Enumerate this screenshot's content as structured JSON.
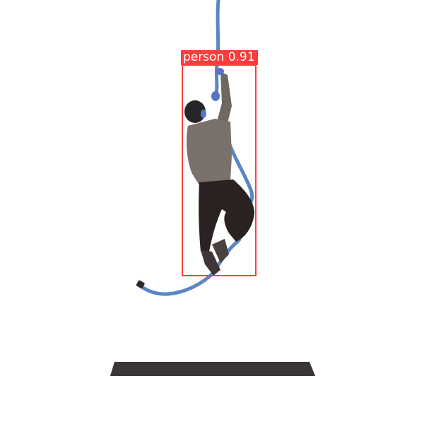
{
  "detection": {
    "class_label": "person",
    "confidence": "0.91",
    "box_color": "#ff3b3b"
  },
  "colors": {
    "rope": "#5b86c4",
    "shirt": "#7a716c",
    "pants": "#2a2220",
    "mat": "#3a3636",
    "background": "#ffffff"
  }
}
